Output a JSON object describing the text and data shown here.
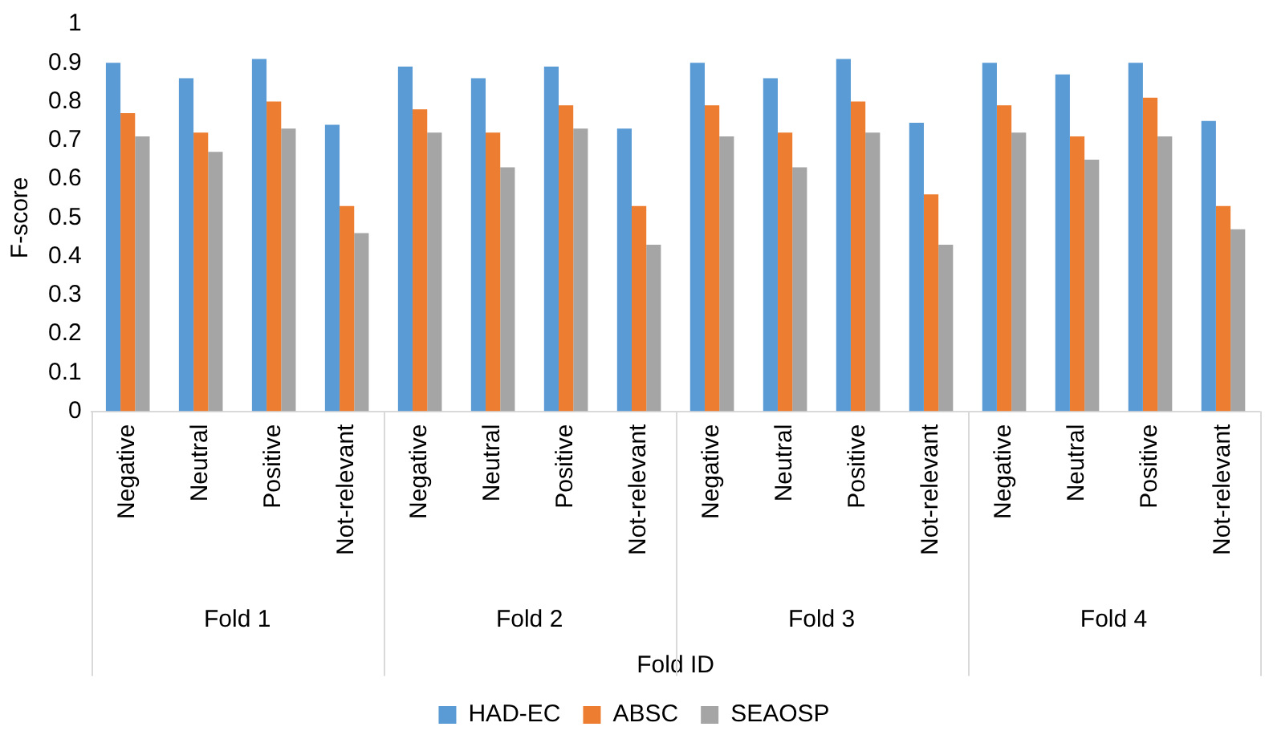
{
  "chart_data": {
    "type": "bar",
    "xlabel": "Fold ID",
    "ylabel": "F-score",
    "categories": [
      "Negative",
      "Neutral",
      "Positive",
      "Not-relevant",
      "Negative",
      "Neutral",
      "Positive",
      "Not-relevant",
      "Negative",
      "Neutral",
      "Positive",
      "Not-relevant",
      "Negative",
      "Neutral",
      "Positive",
      "Not-relevant"
    ],
    "series": [
      {
        "name": "HAD-EC",
        "color": "#5b9bd5",
        "values": [
          0.9,
          0.86,
          0.91,
          0.74,
          0.89,
          0.86,
          0.89,
          0.73,
          0.9,
          0.86,
          0.91,
          0.745,
          0.9,
          0.87,
          0.9,
          0.75
        ]
      },
      {
        "name": "ABSC",
        "color": "#ed7d31",
        "values": [
          0.77,
          0.72,
          0.8,
          0.53,
          0.78,
          0.72,
          0.79,
          0.53,
          0.79,
          0.72,
          0.8,
          0.56,
          0.79,
          0.71,
          0.81,
          0.53
        ]
      },
      {
        "name": "SEAOSP",
        "color": "#a5a5a5",
        "values": [
          0.71,
          0.67,
          0.73,
          0.46,
          0.72,
          0.63,
          0.73,
          0.43,
          0.71,
          0.63,
          0.72,
          0.43,
          0.72,
          0.65,
          0.71,
          0.47
        ]
      }
    ],
    "annotations": [
      "Fold 1",
      "Fold 2",
      "Fold 3",
      "Fold 4"
    ],
    "ylim": [
      0,
      1
    ],
    "yticks": [
      0,
      0.1,
      0.2,
      0.3,
      0.4,
      0.5,
      0.6,
      0.7,
      0.8,
      0.9,
      1
    ],
    "grid": false,
    "legend": "bottom"
  }
}
